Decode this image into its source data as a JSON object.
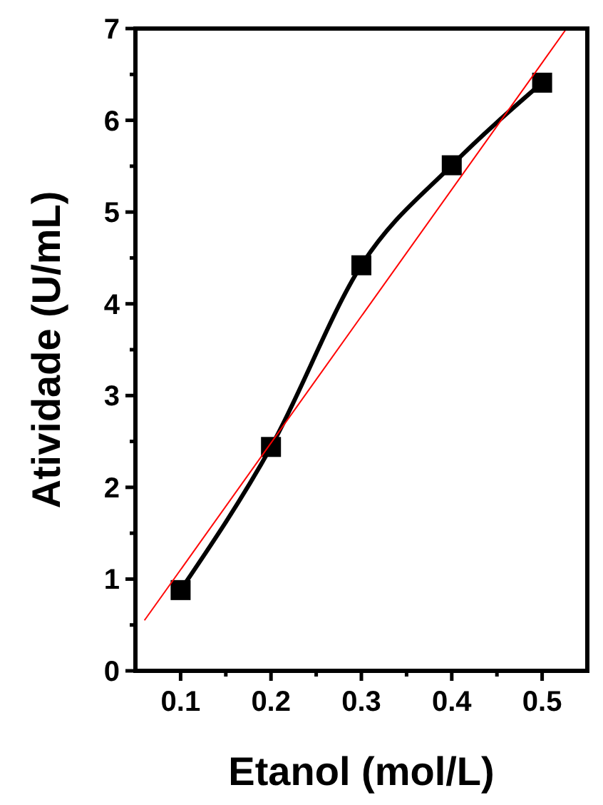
{
  "chart_data": {
    "type": "line",
    "xlabel": "Etanol (mol/L)",
    "ylabel": "Atividade (U/mL)",
    "x": [
      0.1,
      0.2,
      0.3,
      0.4,
      0.5
    ],
    "series": [
      {
        "color": "#000000",
        "values": [
          0.88,
          2.44,
          4.42,
          5.51,
          6.41
        ],
        "marker": "square"
      },
      {
        "color": "#ff0000",
        "x": [
          0.06,
          0.527
        ],
        "values": [
          0.55,
          7.0
        ],
        "marker": "none"
      }
    ],
    "xlim": [
      0.05,
      0.55
    ],
    "ylim": [
      0,
      7
    ],
    "xticks": [
      0.1,
      {
        "value": 0.15,
        "label": null
      },
      0.2,
      {
        "value": 0.25,
        "label": null
      },
      0.3,
      {
        "value": 0.35,
        "label": null
      },
      0.4,
      {
        "value": 0.45,
        "label": null
      },
      0.5
    ],
    "yticks": [
      0,
      {
        "value": 0.5,
        "label": null
      },
      1,
      {
        "value": 1.5,
        "label": null
      },
      2,
      {
        "value": 2.5,
        "label": null
      },
      3,
      {
        "value": 3.5,
        "label": null
      },
      4,
      {
        "value": 4.5,
        "label": null
      },
      5,
      {
        "value": 5.5,
        "label": null
      },
      6,
      {
        "value": 6.5,
        "label": null
      },
      7
    ],
    "grid": false
  }
}
